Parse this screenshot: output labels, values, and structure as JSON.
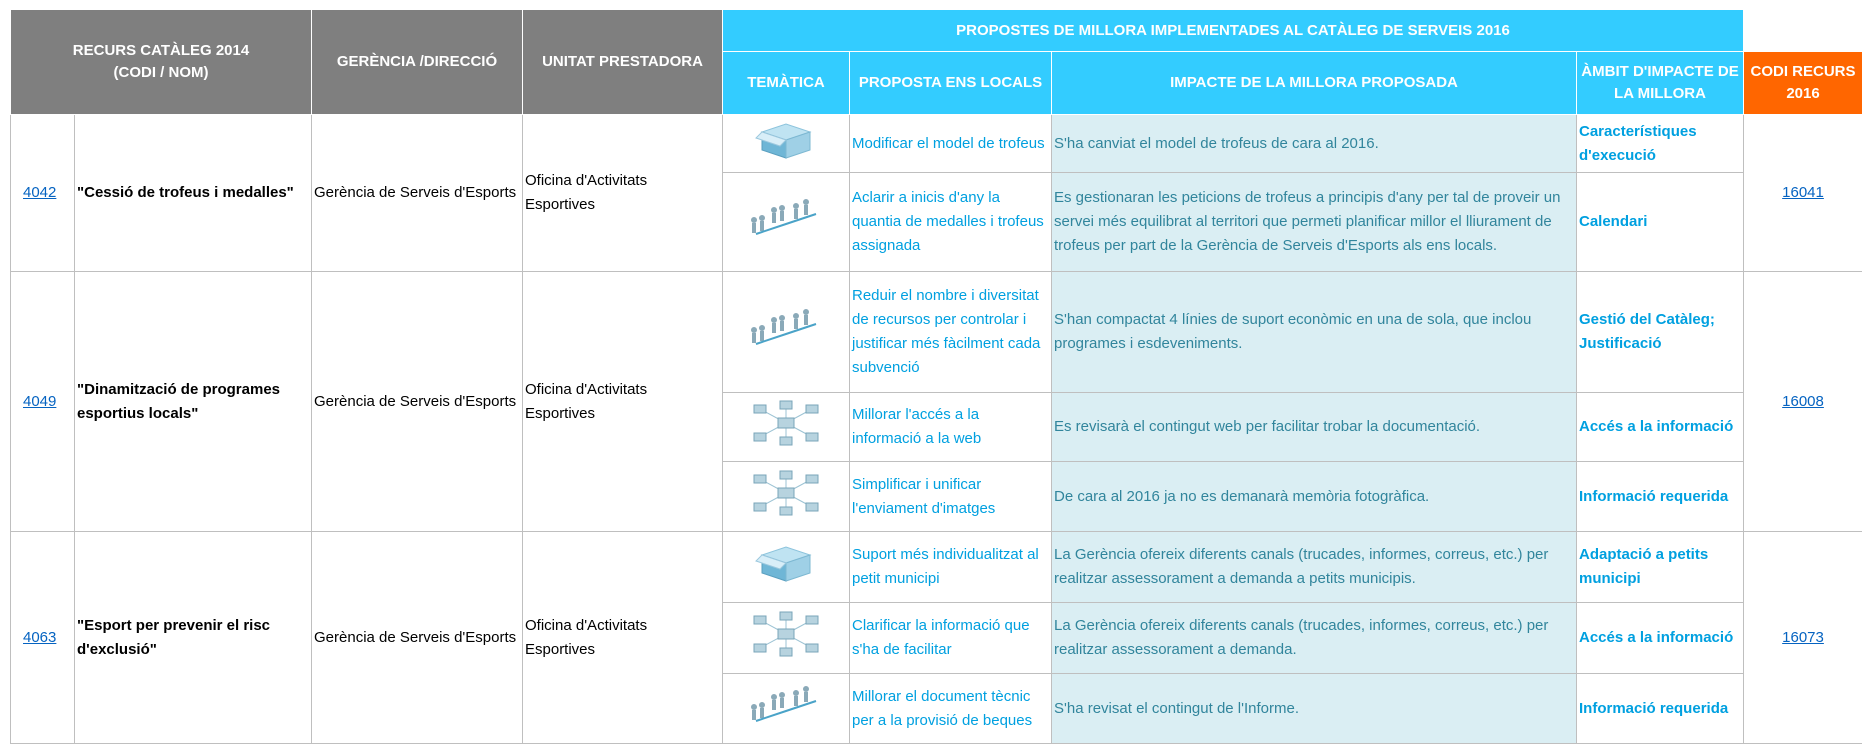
{
  "header": {
    "recurs": [
      "RECURS CATÀLEG 2014",
      "(CODI / NOM)"
    ],
    "gerencia": "GERÈNCIA /DIRECCIÓ",
    "unitat": "UNITAT PRESTADORA",
    "group": "PROPOSTES DE MILLORA IMPLEMENTADES AL CATÀLEG DE SERVEIS 2016",
    "tematica": "TEMÀTICA",
    "proposta": "PROPOSTA ENS LOCALS",
    "impacte": "IMPACTE DE LA MILLORA PROPOSADA",
    "ambit": "ÀMBIT D'IMPACTE DE LA MILLORA",
    "codi": "CODI RECURS 2016"
  },
  "resources": [
    {
      "code": "4042",
      "name": "\"Cessió de trofeus i medalles\"",
      "gerencia": "Gerència de Serveis d'Esports",
      "unitat": "Oficina d'Activitats Esportives",
      "new_code": "16041",
      "proposals": [
        {
          "proposta": "Modificar el model de trofeus",
          "impacte": "S'ha canviat el model de trofeus de cara al 2016.",
          "ambit": "Característiques d'execució"
        },
        {
          "proposta": "Aclarir a inicis d'any la quantia de medalles i trofeus assignada",
          "impacte": "Es gestionaran les peticions de trofeus a principis d'any per tal de proveir un servei més equilibrat al territori  que permeti planificar millor el lliurament de trofeus per part de la Gerència de Serveis d'Esports als ens locals.",
          "ambit": "Calendari"
        }
      ]
    },
    {
      "code": "4049",
      "name": "\"Dinamització de programes esportius locals\"",
      "gerencia": "Gerència de Serveis d'Esports",
      "unitat": "Oficina d'Activitats Esportives",
      "new_code": "16008",
      "proposals": [
        {
          "proposta": "Reduir el nombre i diversitat de recursos per controlar i justificar més fàcilment cada subvenció",
          "impacte": "S'han compactat 4 línies de suport econòmic en una de sola, que inclou programes i esdeveniments.",
          "ambit": "Gestió del Catàleg; Justificació"
        },
        {
          "proposta": "Millorar l'accés a la informació a la web",
          "impacte": "Es revisarà el contingut web per facilitar trobar la documentació.",
          "ambit": "Accés a la informació"
        },
        {
          "proposta": "Simplificar i unificar l'enviament d'imatges",
          "impacte": "De cara al 2016 ja no es demanarà memòria fotogràfica.",
          "ambit": "Informació requerida"
        }
      ]
    },
    {
      "code": "4063",
      "name": "\"Esport per prevenir el risc d'exclusió\"",
      "gerencia": "Gerència de Serveis d'Esports",
      "unitat": "Oficina d'Activitats Esportives",
      "new_code": "16073",
      "proposals": [
        {
          "proposta": "Suport més individualitzat al petit municipi",
          "impacte": "La Gerència ofereix diferents canals (trucades, informes, correus, etc.) per realitzar assessorament a demanda a petits municipis.",
          "ambit": "Adaptació a petits municipi"
        },
        {
          "proposta": "Clarificar la informació que s'ha de facilitar",
          "impacte": "La Gerència ofereix diferents canals (trucades, informes, correus, etc.) per realitzar assessorament a demanda.",
          "ambit": "Accés a la informació"
        },
        {
          "proposta": "Millorar el document tècnic per a la provisió de beques",
          "impacte": "S'ha revisat el contingut de l'Informe.",
          "ambit": "Informació requerida"
        }
      ]
    }
  ]
}
